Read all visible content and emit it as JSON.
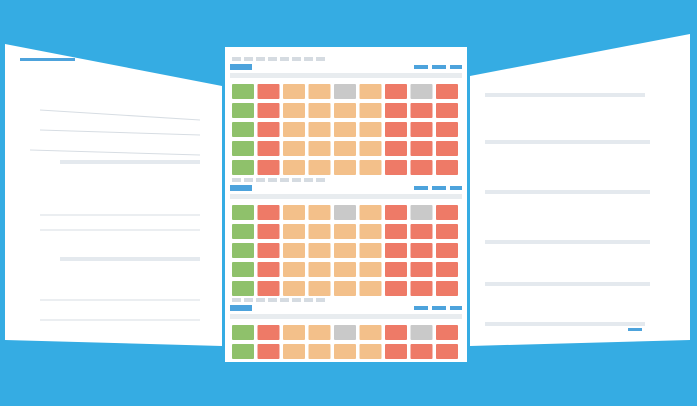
{
  "center_panel": {
    "blocks": [
      {
        "tiles": [
          [
            "#8fc16b",
            "#ee7a67",
            "#f3c08a",
            "#f3c08a",
            "#c9c9c9",
            "#f3c08a",
            "#ee7a67",
            "#c9c9c9",
            "#ee7a67"
          ],
          [
            "#8fc16b",
            "#ee7a67",
            "#f3c08a",
            "#f3c08a",
            "#f3c08a",
            "#f3c08a",
            "#ee7a67",
            "#ee7a67",
            "#ee7a67"
          ],
          [
            "#8fc16b",
            "#ee7a67",
            "#f3c08a",
            "#f3c08a",
            "#f3c08a",
            "#f3c08a",
            "#ee7a67",
            "#ee7a67",
            "#ee7a67"
          ],
          [
            "#8fc16b",
            "#ee7a67",
            "#f3c08a",
            "#f3c08a",
            "#f3c08a",
            "#f3c08a",
            "#ee7a67",
            "#ee7a67",
            "#ee7a67"
          ],
          [
            "#8fc16b",
            "#ee7a67",
            "#f3c08a",
            "#f3c08a",
            "#f3c08a",
            "#f3c08a",
            "#ee7a67",
            "#ee7a67",
            "#ee7a67"
          ]
        ]
      },
      {
        "tiles": [
          [
            "#8fc16b",
            "#ee7a67",
            "#f3c08a",
            "#f3c08a",
            "#c9c9c9",
            "#f3c08a",
            "#ee7a67",
            "#c9c9c9",
            "#ee7a67"
          ],
          [
            "#8fc16b",
            "#ee7a67",
            "#f3c08a",
            "#f3c08a",
            "#f3c08a",
            "#f3c08a",
            "#ee7a67",
            "#ee7a67",
            "#ee7a67"
          ],
          [
            "#8fc16b",
            "#ee7a67",
            "#f3c08a",
            "#f3c08a",
            "#f3c08a",
            "#f3c08a",
            "#ee7a67",
            "#ee7a67",
            "#ee7a67"
          ],
          [
            "#8fc16b",
            "#ee7a67",
            "#f3c08a",
            "#f3c08a",
            "#f3c08a",
            "#f3c08a",
            "#ee7a67",
            "#ee7a67",
            "#ee7a67"
          ],
          [
            "#8fc16b",
            "#ee7a67",
            "#f3c08a",
            "#f3c08a",
            "#f3c08a",
            "#f3c08a",
            "#ee7a67",
            "#ee7a67",
            "#ee7a67"
          ]
        ]
      },
      {
        "tiles": [
          [
            "#8fc16b",
            "#ee7a67",
            "#f3c08a",
            "#f3c08a",
            "#c9c9c9",
            "#f3c08a",
            "#ee7a67",
            "#c9c9c9",
            "#ee7a67"
          ],
          [
            "#8fc16b",
            "#ee7a67",
            "#f3c08a",
            "#f3c08a",
            "#f3c08a",
            "#f3c08a",
            "#ee7a67",
            "#ee7a67",
            "#ee7a67"
          ]
        ]
      }
    ]
  }
}
